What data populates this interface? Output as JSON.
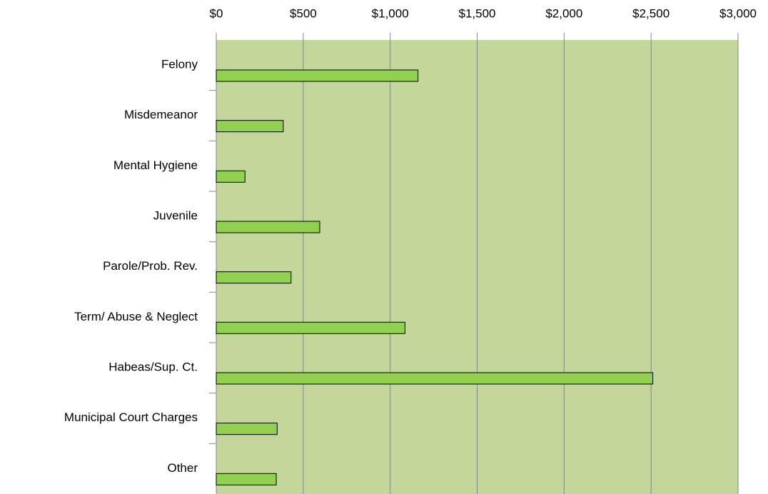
{
  "chart_data": {
    "type": "barh",
    "categories": [
      "Felony",
      "Misdemeanor",
      "Mental Hygiene",
      "Juvenile",
      "Parole/Prob. Rev.",
      "Term/ Abuse & Neglect",
      "Habeas/Sup. Ct.",
      "Municipal Court Charges",
      "Other"
    ],
    "values": [
      1160,
      385,
      165,
      595,
      430,
      1085,
      2510,
      350,
      345
    ],
    "color": "#92d050",
    "xlim": [
      0,
      3000
    ],
    "xticks": [
      {
        "value": 0,
        "label": "$0"
      },
      {
        "value": 500,
        "label": "$500"
      },
      {
        "value": 1000,
        "label": "$1,000"
      },
      {
        "value": 1500,
        "label": "$1,500"
      },
      {
        "value": 2000,
        "label": "$2,000"
      },
      {
        "value": 2500,
        "label": "$2,500"
      },
      {
        "value": 3000,
        "label": "$3,000"
      }
    ],
    "grid": true
  }
}
